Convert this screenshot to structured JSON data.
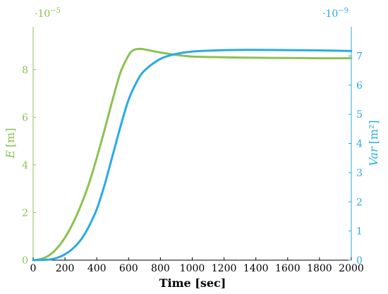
{
  "colors": {
    "left": "#8cc152",
    "right": "#29abe2",
    "axis": "#000000",
    "background": "#ffffff"
  },
  "chart_data": {
    "type": "line",
    "xlabel": "Time [sec]",
    "xlim": [
      0,
      2000
    ],
    "x_ticks": [
      "0",
      "200",
      "400",
      "600",
      "800",
      "1000",
      "1200",
      "1400",
      "1600",
      "1800",
      "2000"
    ],
    "left_axis": {
      "label": "E [m]",
      "label_var": "E",
      "label_unit": "[m]",
      "multiplier": "·10",
      "exponent": "−5",
      "ylim": [
        0,
        9.8
      ],
      "ticks": [
        "0",
        "2",
        "4",
        "6",
        "8"
      ]
    },
    "right_axis": {
      "label": "Var [m²]",
      "label_var": "Var",
      "label_unit": "[m²]",
      "multiplier": "·10",
      "exponent": "−9",
      "ylim": [
        0,
        8
      ],
      "ticks": [
        "0",
        "1",
        "2",
        "3",
        "4",
        "5",
        "6",
        "7"
      ]
    },
    "series": [
      {
        "axis": "left",
        "x": [
          0,
          50,
          100,
          150,
          200,
          250,
          300,
          350,
          400,
          450,
          500,
          550,
          600,
          625,
          650,
          675,
          700,
          800,
          900,
          1000,
          1200,
          1400,
          1600,
          1800,
          2000
        ],
        "values": [
          0,
          0.05,
          0.2,
          0.5,
          0.95,
          1.55,
          2.3,
          3.2,
          4.3,
          5.5,
          6.75,
          7.9,
          8.6,
          8.8,
          8.86,
          8.87,
          8.85,
          8.72,
          8.62,
          8.55,
          8.52,
          8.5,
          8.49,
          8.48,
          8.48
        ]
      },
      {
        "axis": "right",
        "x": [
          0,
          100,
          150,
          200,
          250,
          300,
          350,
          400,
          450,
          500,
          550,
          600,
          650,
          700,
          800,
          900,
          1000,
          1100,
          1200,
          1400,
          1600,
          1800,
          2000
        ],
        "values": [
          0,
          0.02,
          0.08,
          0.2,
          0.4,
          0.7,
          1.15,
          1.75,
          2.6,
          3.6,
          4.6,
          5.5,
          6.1,
          6.5,
          6.9,
          7.07,
          7.15,
          7.18,
          7.2,
          7.21,
          7.2,
          7.19,
          7.17
        ]
      }
    ]
  }
}
